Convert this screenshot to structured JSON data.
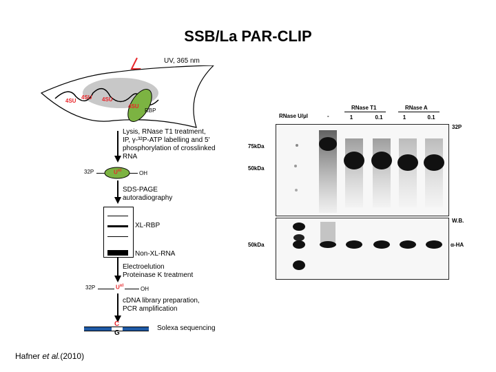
{
  "slide": {
    "title": "SSB/La PAR-CLIP",
    "citation_author": "Hafner ",
    "citation_etal": "et al.",
    "citation_year": "(2010)"
  },
  "workflow": {
    "uv_label": "UV, 365 nm",
    "rbp_label": "RBP",
    "fourSU": "4SU",
    "step1_lines": [
      "Lysis, RNase T1 treatment,",
      "IP, γ-³²P-ATP labelling and 5'",
      "phosphorylation of crosslinked",
      "RNA"
    ],
    "p32": "32P",
    "uxl": "U",
    "xl_sup": "xl",
    "oh": "OH",
    "step2_lines": [
      "SDS-PAGE",
      "autoradiography"
    ],
    "xl_rbp": "XL-RBP",
    "non_xl_rna": "Non-XL-RNA",
    "step3_lines": [
      "Electroelution",
      "Proteinase K treatment"
    ],
    "step4_lines": [
      "cDNA library preparation,",
      "PCR amplification"
    ],
    "seq_c": "C",
    "seq_g": "G",
    "solexa": "Solexa sequencing"
  },
  "gel": {
    "rnase_label": "RNase U/µl",
    "minus": "-",
    "rnase_t1": "RNase T1",
    "rnase_a": "RNase A",
    "conc": [
      "1",
      "0.1",
      "1",
      "0.1"
    ],
    "p32": "32P",
    "marker_75": "75kDa",
    "marker_50_top": "50kDa",
    "marker_50_bottom": "50kDa",
    "wb": "W.B.",
    "alpha_ha": "α-HA"
  }
}
